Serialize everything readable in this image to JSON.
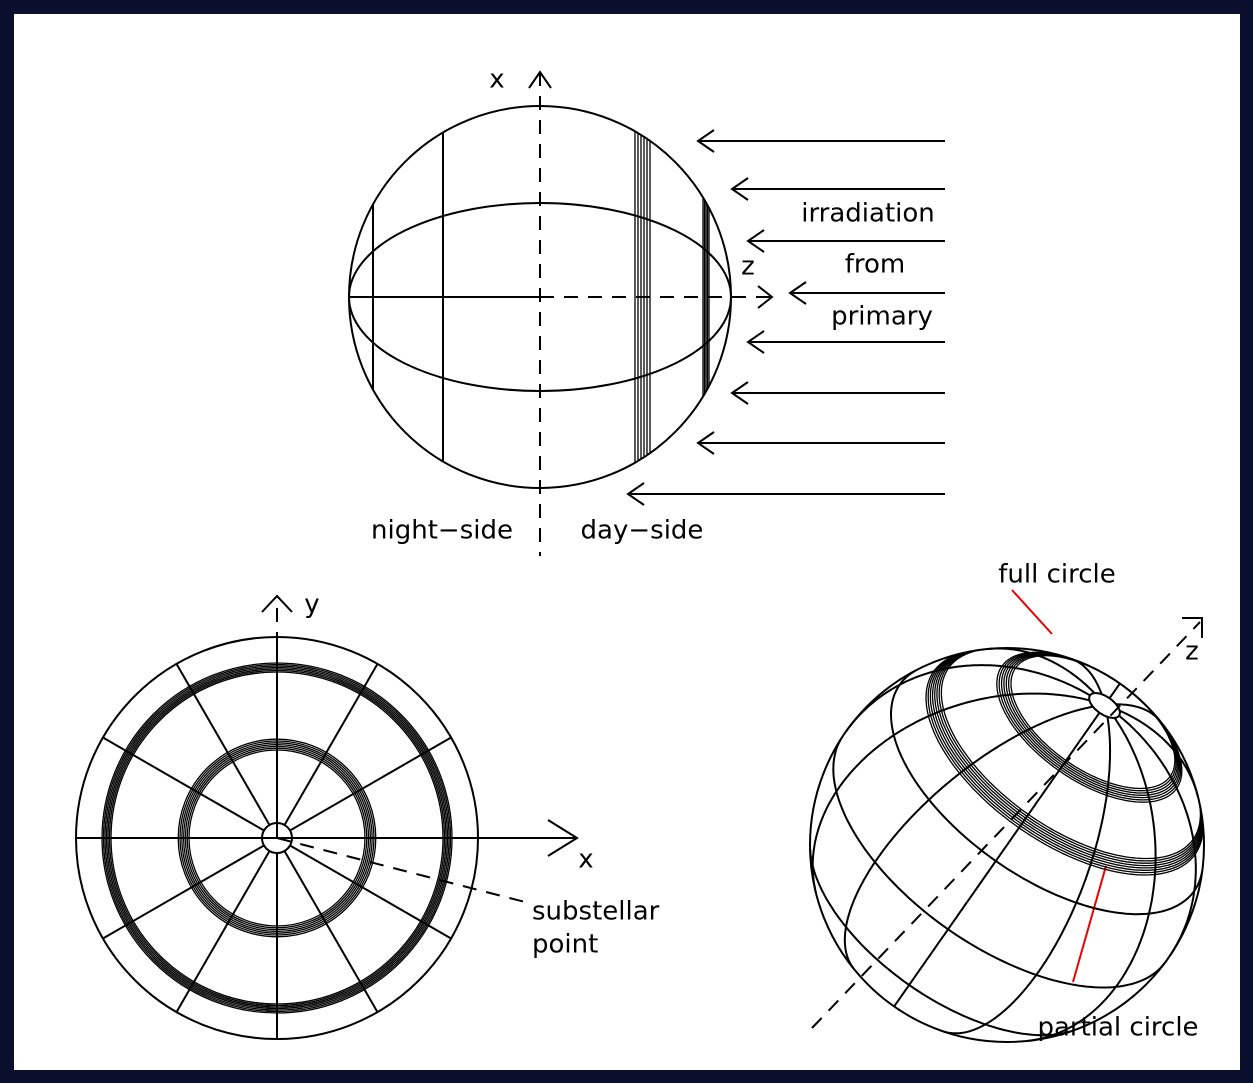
{
  "top_view": {
    "axis_x": "x",
    "axis_z": "z",
    "irradiation": [
      "irradiation",
      "from",
      "primary"
    ],
    "night_side": "night−side",
    "day_side": "day−side"
  },
  "face_view": {
    "axis_y": "y",
    "axis_x": "x",
    "substellar": [
      "substellar",
      "point"
    ]
  },
  "oblique_view": {
    "axis_z": "z",
    "full_circle": "full circle",
    "partial_circle": "partial circle"
  }
}
